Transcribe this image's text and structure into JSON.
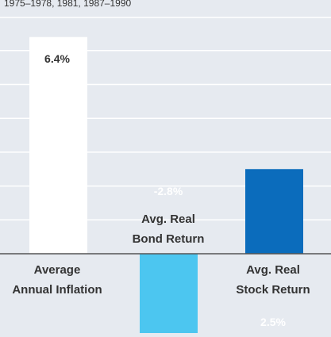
{
  "chart_data": {
    "type": "bar",
    "subtitle": "1975–1978, 1981, 1987–1990",
    "categories": [
      [
        "Average",
        "Annual Inflation"
      ],
      [
        "Avg. Real",
        "Bond Return"
      ],
      [
        "Avg. Real",
        "Stock Return"
      ]
    ],
    "values": [
      6.4,
      -2.8,
      2.5
    ],
    "value_labels": [
      "6.4%",
      "-2.8%",
      "2.5%"
    ],
    "ylim": [
      -2.8,
      7.5
    ],
    "grid": true,
    "colors": {
      "background": "#e6eaf0",
      "gridline": "#ffffff",
      "zero_line": "#555555",
      "text": "#333333",
      "bars": [
        "#ffffff",
        "#4cc6f0",
        "#0b6cbc"
      ],
      "value_label_colors": [
        "#333333",
        "#ffffff",
        "#ffffff"
      ]
    }
  }
}
